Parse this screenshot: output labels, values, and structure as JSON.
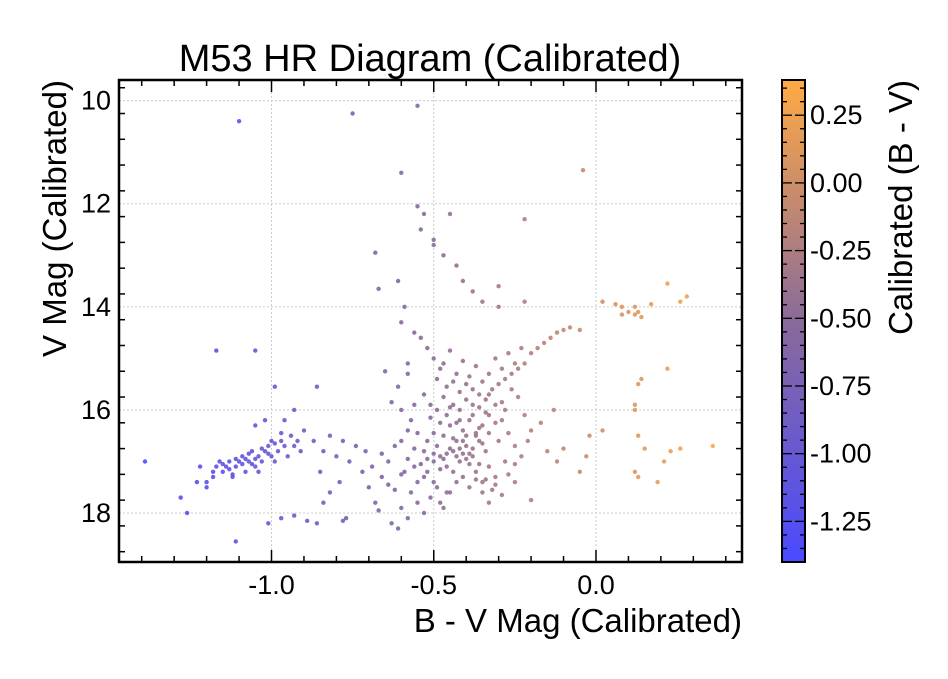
{
  "chart_data": {
    "type": "scatter",
    "title": "M53 HR Diagram (Calibrated)",
    "xlabel": "B - V Mag (Calibrated)",
    "ylabel": "V Mag (Calibrated)",
    "xlim": [
      -1.47,
      0.45
    ],
    "ylim": [
      18.95,
      9.6
    ],
    "y_inverted": true,
    "grid": true,
    "x_ticks": [
      -1.0,
      -0.5,
      0.0
    ],
    "x_tick_labels": [
      "-1.0",
      "-0.5",
      "0.0"
    ],
    "y_ticks": [
      10,
      12,
      14,
      16,
      18
    ],
    "y_tick_labels": [
      "10",
      "12",
      "14",
      "16",
      "18"
    ],
    "colorbar": {
      "label": "Calibrated (B - V)",
      "range": [
        -1.4,
        0.38
      ],
      "ticks": [
        0.25,
        0.0,
        -0.25,
        -0.5,
        -0.75,
        -1.0,
        -1.25
      ],
      "tick_labels": [
        "0.25",
        "0.00",
        "-0.25",
        "-0.50",
        "-0.75",
        "-1.00",
        "-1.25"
      ],
      "color_low": "#4a4aff",
      "color_mid": "#8a6a9a",
      "color_high": "#ffaa44"
    },
    "points": [
      [
        -1.39,
        17.0
      ],
      [
        -1.26,
        18.0
      ],
      [
        -1.28,
        17.7
      ],
      [
        -1.23,
        17.4
      ],
      [
        -1.2,
        17.5
      ],
      [
        -1.18,
        17.3
      ],
      [
        -1.22,
        17.1
      ],
      [
        -1.18,
        17.2
      ],
      [
        -1.16,
        17.0
      ],
      [
        -1.15,
        17.2
      ],
      [
        -1.14,
        17.1
      ],
      [
        -1.13,
        17.0
      ],
      [
        -1.12,
        17.3
      ],
      [
        -1.11,
        17.1
      ],
      [
        -1.1,
        17.0
      ],
      [
        -1.09,
        16.9
      ],
      [
        -1.08,
        17.2
      ],
      [
        -1.07,
        17.0
      ],
      [
        -1.06,
        16.8
      ],
      [
        -1.05,
        17.1
      ],
      [
        -1.04,
        16.9
      ],
      [
        -1.03,
        17.0
      ],
      [
        -1.02,
        16.8
      ],
      [
        -1.01,
        16.7
      ],
      [
        -1.0,
        16.9
      ],
      [
        -0.99,
        17.0
      ],
      [
        -0.98,
        16.8
      ],
      [
        -0.97,
        16.6
      ],
      [
        -0.96,
        16.7
      ],
      [
        -0.95,
        16.9
      ],
      [
        -0.94,
        16.5
      ],
      [
        -0.93,
        16.7
      ],
      [
        -0.92,
        16.6
      ],
      [
        -0.91,
        16.8
      ],
      [
        -0.9,
        16.4
      ],
      [
        -1.13,
        17.15
      ],
      [
        -1.11,
        16.95
      ],
      [
        -1.09,
        17.05
      ],
      [
        -1.07,
        16.85
      ],
      [
        -1.05,
        16.95
      ],
      [
        -1.03,
        16.75
      ],
      [
        -1.01,
        16.85
      ],
      [
        -0.99,
        16.65
      ],
      [
        -1.15,
        17.05
      ],
      [
        -1.17,
        17.1
      ],
      [
        -1.12,
        17.25
      ],
      [
        -1.06,
        17.05
      ],
      [
        -1.04,
        17.2
      ],
      [
        -1.08,
        16.95
      ],
      [
        -1.0,
        16.6
      ],
      [
        -0.97,
        16.45
      ],
      [
        -0.96,
        16.2
      ],
      [
        -0.93,
        16.0
      ],
      [
        -0.99,
        15.55
      ],
      [
        -1.05,
        16.3
      ],
      [
        -1.02,
        16.2
      ],
      [
        -1.2,
        17.4
      ],
      [
        -1.11,
        18.55
      ],
      [
        -1.01,
        18.2
      ],
      [
        -0.97,
        18.1
      ],
      [
        -0.93,
        18.05
      ],
      [
        -0.89,
        18.15
      ],
      [
        -0.86,
        18.2
      ],
      [
        -1.17,
        14.85
      ],
      [
        -1.05,
        14.85
      ],
      [
        -1.1,
        10.4
      ],
      [
        -0.86,
        15.55
      ],
      [
        -0.87,
        16.6
      ],
      [
        -0.84,
        16.8
      ],
      [
        -0.82,
        16.5
      ],
      [
        -0.8,
        16.9
      ],
      [
        -0.78,
        16.6
      ],
      [
        -0.76,
        17.0
      ],
      [
        -0.74,
        16.7
      ],
      [
        -0.85,
        17.2
      ],
      [
        -0.79,
        17.4
      ],
      [
        -0.82,
        17.6
      ],
      [
        -0.77,
        18.1
      ],
      [
        -0.78,
        18.15
      ],
      [
        -0.84,
        17.8
      ],
      [
        -0.72,
        17.2
      ],
      [
        -0.7,
        17.5
      ],
      [
        -0.68,
        17.8
      ],
      [
        -0.66,
        17.3
      ],
      [
        -0.64,
        17.0
      ],
      [
        -0.62,
        16.7
      ],
      [
        -0.6,
        16.6
      ],
      [
        -0.58,
        16.4
      ],
      [
        -0.67,
        17.95
      ],
      [
        -0.63,
        18.2
      ],
      [
        -0.6,
        17.9
      ],
      [
        -0.57,
        17.6
      ],
      [
        -0.59,
        17.2
      ],
      [
        -0.56,
        17.1
      ],
      [
        -0.55,
        17.4
      ],
      [
        -0.53,
        17.3
      ],
      [
        -0.51,
        17.7
      ],
      [
        -0.49,
        17.5
      ],
      [
        -0.47,
        17.9
      ],
      [
        -0.45,
        17.6
      ],
      [
        -0.55,
        17.8
      ],
      [
        -0.53,
        18.0
      ],
      [
        -0.58,
        18.1
      ],
      [
        -0.61,
        18.3
      ],
      [
        -0.52,
        17.2
      ],
      [
        -0.5,
        17.0
      ],
      [
        -0.48,
        16.9
      ],
      [
        -0.46,
        17.1
      ],
      [
        -0.44,
        16.8
      ],
      [
        -0.42,
        17.0
      ],
      [
        -0.4,
        16.7
      ],
      [
        -0.38,
        16.9
      ],
      [
        -0.36,
        16.6
      ],
      [
        -0.34,
        16.8
      ],
      [
        -0.47,
        16.5
      ],
      [
        -0.45,
        16.3
      ],
      [
        -0.43,
        16.6
      ],
      [
        -0.41,
        16.4
      ],
      [
        -0.39,
        16.2
      ],
      [
        -0.37,
        16.5
      ],
      [
        -0.35,
        16.3
      ],
      [
        -0.33,
        16.1
      ],
      [
        -0.46,
        16.1
      ],
      [
        -0.44,
        15.9
      ],
      [
        -0.42,
        16.0
      ],
      [
        -0.4,
        15.8
      ],
      [
        -0.38,
        15.9
      ],
      [
        -0.36,
        15.7
      ],
      [
        -0.34,
        15.8
      ],
      [
        -0.32,
        15.6
      ],
      [
        -0.3,
        15.5
      ],
      [
        -0.28,
        15.4
      ],
      [
        -0.26,
        15.3
      ],
      [
        -0.24,
        15.2
      ],
      [
        -0.22,
        15.1
      ],
      [
        -0.2,
        14.9
      ],
      [
        -0.18,
        14.8
      ],
      [
        -0.16,
        14.7
      ],
      [
        -0.14,
        14.6
      ],
      [
        -0.12,
        14.5
      ],
      [
        -0.1,
        14.45
      ],
      [
        -0.08,
        14.4
      ],
      [
        -0.05,
        14.45
      ],
      [
        -0.33,
        15.3
      ],
      [
        -0.31,
        15.0
      ],
      [
        -0.29,
        15.2
      ],
      [
        -0.27,
        14.9
      ],
      [
        -0.25,
        15.1
      ],
      [
        -0.23,
        14.8
      ],
      [
        -0.41,
        17.3
      ],
      [
        -0.39,
        17.5
      ],
      [
        -0.37,
        17.2
      ],
      [
        -0.35,
        17.4
      ],
      [
        -0.33,
        17.1
      ],
      [
        -0.31,
        17.3
      ],
      [
        -0.43,
        17.4
      ],
      [
        -0.46,
        17.6
      ],
      [
        -0.48,
        17.8
      ],
      [
        -0.5,
        17.4
      ],
      [
        -0.44,
        17.2
      ],
      [
        -0.42,
        16.2
      ],
      [
        -0.4,
        16.5
      ],
      [
        -0.38,
        16.1
      ],
      [
        -0.36,
        16.35
      ],
      [
        -0.48,
        16.25
      ],
      [
        -0.5,
        16.45
      ],
      [
        -0.52,
        16.6
      ],
      [
        -0.49,
        16.7
      ],
      [
        -0.47,
        16.95
      ],
      [
        -0.45,
        16.75
      ],
      [
        -0.43,
        16.9
      ],
      [
        -0.41,
        16.6
      ],
      [
        -0.39,
        16.85
      ],
      [
        -0.37,
        16.45
      ],
      [
        -0.35,
        16.65
      ],
      [
        -0.33,
        16.45
      ],
      [
        -0.31,
        16.25
      ],
      [
        -0.3,
        16.6
      ],
      [
        -0.29,
        15.85
      ],
      [
        -0.28,
        16.0
      ],
      [
        -0.26,
        15.6
      ],
      [
        -0.24,
        15.75
      ],
      [
        -0.22,
        16.1
      ],
      [
        -0.2,
        16.4
      ],
      [
        -0.34,
        16.05
      ],
      [
        -0.36,
        15.95
      ],
      [
        -0.38,
        15.6
      ],
      [
        -0.4,
        15.5
      ],
      [
        -0.42,
        15.65
      ],
      [
        -0.44,
        15.45
      ],
      [
        -0.46,
        15.55
      ],
      [
        -0.48,
        15.2
      ],
      [
        -0.5,
        15.0
      ],
      [
        -0.52,
        14.8
      ],
      [
        -0.54,
        14.6
      ],
      [
        -0.56,
        14.5
      ],
      [
        -0.58,
        15.1
      ],
      [
        -0.6,
        14.3
      ],
      [
        -0.59,
        14.0
      ],
      [
        -0.61,
        13.5
      ],
      [
        -0.6,
        11.4
      ],
      [
        -0.55,
        10.1
      ],
      [
        -0.75,
        10.25
      ],
      [
        -0.55,
        12.05
      ],
      [
        -0.53,
        12.2
      ],
      [
        -0.54,
        12.5
      ],
      [
        -0.5,
        12.7
      ],
      [
        -0.5,
        12.8
      ],
      [
        -0.47,
        13.0
      ],
      [
        -0.43,
        13.2
      ],
      [
        -0.41,
        13.5
      ],
      [
        -0.38,
        13.7
      ],
      [
        -0.35,
        13.9
      ],
      [
        -0.3,
        14.0
      ],
      [
        -0.45,
        12.2
      ],
      [
        -0.22,
        12.3
      ],
      [
        -0.3,
        13.6
      ],
      [
        -0.22,
        13.9
      ],
      [
        -0.68,
        12.95
      ],
      [
        -0.67,
        13.65
      ],
      [
        -0.04,
        11.35
      ],
      [
        0.02,
        13.9
      ],
      [
        0.06,
        13.95
      ],
      [
        0.08,
        14.0
      ],
      [
        0.1,
        14.1
      ],
      [
        0.12,
        14.15
      ],
      [
        0.14,
        14.2
      ],
      [
        0.17,
        13.95
      ],
      [
        0.22,
        13.55
      ],
      [
        0.26,
        13.9
      ],
      [
        0.28,
        13.8
      ],
      [
        0.08,
        14.15
      ],
      [
        0.12,
        14.0
      ],
      [
        0.13,
        14.1
      ],
      [
        0.22,
        15.2
      ],
      [
        0.14,
        15.4
      ],
      [
        0.13,
        15.5
      ],
      [
        0.12,
        15.9
      ],
      [
        0.12,
        16.0
      ],
      [
        0.13,
        16.5
      ],
      [
        0.15,
        16.75
      ],
      [
        0.12,
        17.2
      ],
      [
        0.13,
        17.3
      ],
      [
        0.19,
        17.4
      ],
      [
        0.21,
        17.0
      ],
      [
        0.23,
        16.8
      ],
      [
        0.26,
        16.75
      ],
      [
        0.36,
        16.7
      ],
      [
        0.02,
        16.4
      ],
      [
        -0.02,
        16.5
      ],
      [
        -0.03,
        16.9
      ],
      [
        -0.05,
        17.2
      ],
      [
        -0.1,
        16.75
      ],
      [
        -0.12,
        17.0
      ],
      [
        -0.15,
        16.8
      ],
      [
        -0.13,
        16.0
      ],
      [
        -0.17,
        16.25
      ],
      [
        -0.2,
        17.75
      ],
      [
        -0.25,
        17.4
      ],
      [
        -0.28,
        17.0
      ],
      [
        -0.32,
        17.55
      ],
      [
        -0.34,
        17.35
      ],
      [
        -0.36,
        17.05
      ],
      [
        -0.38,
        16.75
      ],
      [
        -0.4,
        16.95
      ],
      [
        -0.42,
        16.75
      ],
      [
        -0.44,
        16.55
      ],
      [
        -0.46,
        16.85
      ],
      [
        -0.48,
        17.15
      ],
      [
        -0.5,
        16.85
      ],
      [
        -0.52,
        16.95
      ],
      [
        -0.54,
        17.05
      ],
      [
        -0.56,
        16.75
      ],
      [
        -0.58,
        16.95
      ],
      [
        -0.6,
        17.25
      ],
      [
        -0.62,
        17.55
      ],
      [
        -0.64,
        17.45
      ],
      [
        -0.66,
        16.85
      ],
      [
        -0.69,
        17.1
      ],
      [
        -0.71,
        16.8
      ],
      [
        -0.65,
        15.25
      ],
      [
        -0.63,
        15.85
      ],
      [
        -0.61,
        15.55
      ],
      [
        -0.58,
        15.3
      ],
      [
        -0.56,
        15.9
      ],
      [
        -0.53,
        15.7
      ],
      [
        -0.51,
        15.9
      ],
      [
        -0.49,
        15.4
      ],
      [
        -0.47,
        15.1
      ],
      [
        -0.45,
        14.85
      ],
      [
        -0.43,
        15.3
      ],
      [
        -0.41,
        15.05
      ],
      [
        -0.39,
        15.35
      ],
      [
        -0.37,
        15.15
      ],
      [
        -0.35,
        15.45
      ],
      [
        -0.33,
        15.7
      ],
      [
        -0.31,
        15.9
      ],
      [
        -0.29,
        16.2
      ],
      [
        -0.27,
        16.45
      ],
      [
        -0.25,
        16.7
      ],
      [
        -0.6,
        16.0
      ],
      [
        -0.57,
        16.2
      ],
      [
        -0.55,
        16.45
      ],
      [
        -0.53,
        16.8
      ],
      [
        -0.51,
        16.15
      ],
      [
        -0.49,
        16.0
      ],
      [
        -0.47,
        15.75
      ],
      [
        -0.45,
        15.95
      ],
      [
        -0.43,
        16.25
      ],
      [
        -0.41,
        16.85
      ],
      [
        -0.39,
        17.05
      ],
      [
        -0.37,
        17.35
      ],
      [
        -0.35,
        17.6
      ],
      [
        -0.33,
        17.8
      ],
      [
        -0.31,
        17.45
      ],
      [
        -0.29,
        17.65
      ],
      [
        -0.27,
        17.25
      ],
      [
        -0.25,
        17.05
      ],
      [
        -0.23,
        16.9
      ],
      [
        -0.21,
        16.6
      ]
    ]
  }
}
